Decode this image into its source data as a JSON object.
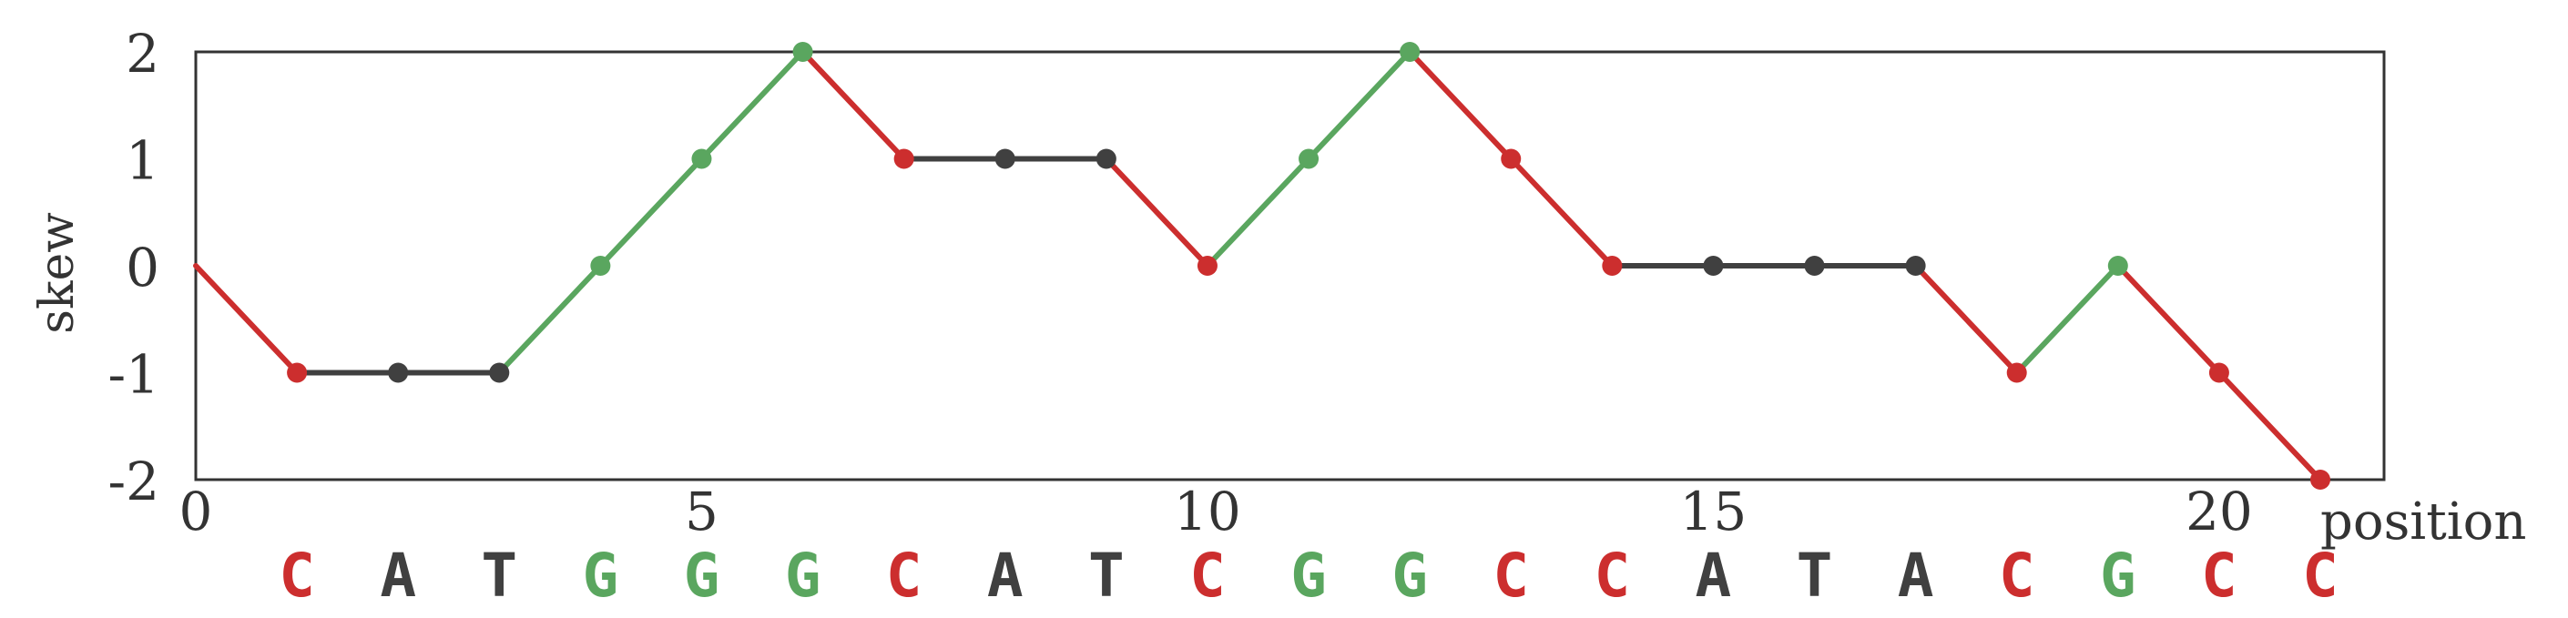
{
  "chart_data": {
    "type": "line",
    "title": "",
    "xlabel": "position",
    "ylabel": "skew",
    "xlim": [
      0,
      21
    ],
    "ylim": [
      -2,
      2
    ],
    "grid": false,
    "x_ticks": [
      0,
      5,
      10,
      15,
      20
    ],
    "y_ticks": [
      2,
      1,
      0,
      -1,
      -2
    ],
    "x_tick_labels": [
      "0",
      "5",
      "10",
      "15",
      "20"
    ],
    "y_tick_labels": [
      "2",
      "1",
      "0",
      "-1",
      "-2"
    ],
    "x": [
      0,
      1,
      2,
      3,
      4,
      5,
      6,
      7,
      8,
      9,
      10,
      11,
      12,
      13,
      14,
      15,
      16,
      17,
      18,
      19,
      20,
      21
    ],
    "y": [
      0,
      -1,
      -1,
      -1,
      0,
      1,
      2,
      1,
      1,
      1,
      0,
      1,
      2,
      1,
      0,
      0,
      0,
      0,
      -1,
      0,
      -1,
      -2
    ],
    "sequence": [
      "C",
      "A",
      "T",
      "G",
      "G",
      "G",
      "C",
      "A",
      "T",
      "C",
      "G",
      "G",
      "C",
      "C",
      "A",
      "T",
      "A",
      "C",
      "G",
      "C",
      "C"
    ],
    "colors": {
      "C": "#cc2e2e",
      "G": "#5aa65f",
      "A": "#404040",
      "T": "#404040",
      "axis": "#333333"
    }
  }
}
